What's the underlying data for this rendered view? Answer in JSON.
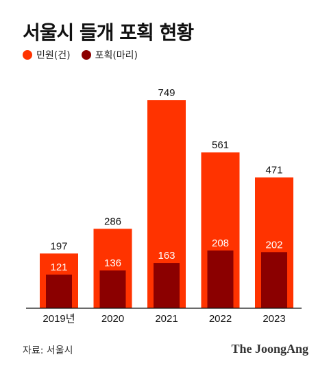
{
  "title": "서울시 들개 포획 현황",
  "legend": [
    {
      "label": "민원(건)",
      "color": "#ff3300"
    },
    {
      "label": "포획(마리)",
      "color": "#8b0000"
    }
  ],
  "source": "자료: 서울시",
  "brand": "The JoongAng",
  "chart_data": {
    "type": "bar",
    "categories": [
      "2019년",
      "2020",
      "2021",
      "2022",
      "2023"
    ],
    "series": [
      {
        "name": "민원(건)",
        "values": [
          197,
          286,
          749,
          561,
          471
        ],
        "color": "#ff3300"
      },
      {
        "name": "포획(마리)",
        "values": [
          121,
          136,
          163,
          208,
          202
        ],
        "color": "#8b0000"
      }
    ],
    "ylim": [
      0,
      800
    ],
    "legend_position": "top-left",
    "grid": false
  }
}
